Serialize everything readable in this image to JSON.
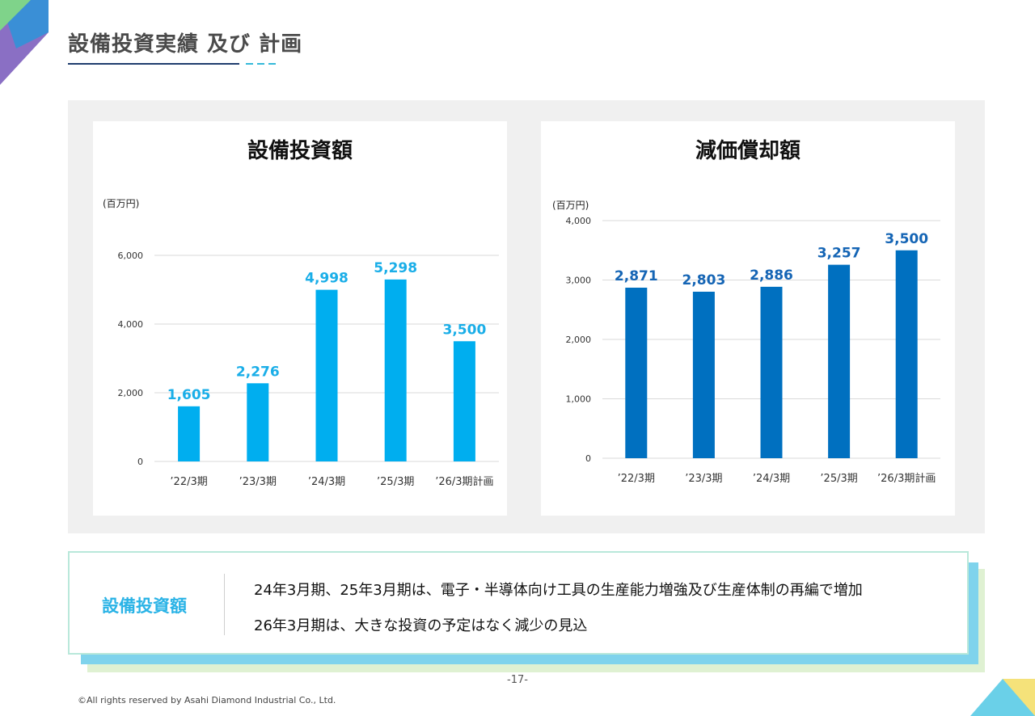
{
  "page": {
    "title": "設備投資実績 及び 計画",
    "page_number": "-17-",
    "copyright": "©All rights reserved by Asahi Diamond Industrial Co., Ltd."
  },
  "note": {
    "label": "設備投資額",
    "lines": [
      "24年3月期、25年3月期は、電子・半導体向け工具の生産能力増強及び生産体制の再編で増加",
      "26年3月期は、大きな投資の予定はなく減少の見込"
    ]
  },
  "chart_data": [
    {
      "type": "bar",
      "title": "設備投資額",
      "unit": "(百万円)",
      "categories": [
        "’22/3期",
        "’23/3期",
        "’24/3期",
        "’25/3期",
        "’26/3期計画"
      ],
      "values": [
        1605,
        2276,
        4998,
        5298,
        3500
      ],
      "value_labels": [
        "1,605",
        "2,276",
        "4,998",
        "5,298",
        "3,500"
      ],
      "ylim": [
        0,
        6000
      ],
      "yticks": [
        0,
        2000,
        4000,
        6000
      ],
      "ytick_labels": [
        "0",
        "2,000",
        "4,000",
        "6,000"
      ],
      "grid": true,
      "color": "#00aeef",
      "label_color": "#1aaee8"
    },
    {
      "type": "bar",
      "title": "減価償却額",
      "unit": "(百万円)",
      "categories": [
        "’22/3期",
        "’23/3期",
        "’24/3期",
        "’25/3期",
        "’26/3期計画"
      ],
      "values": [
        2871,
        2803,
        2886,
        3257,
        3500
      ],
      "value_labels": [
        "2,871",
        "2,803",
        "2,886",
        "3,257",
        "3,500"
      ],
      "ylim": [
        0,
        4000
      ],
      "yticks": [
        0,
        1000,
        2000,
        3000,
        4000
      ],
      "ytick_labels": [
        "0",
        "1,000",
        "2,000",
        "3,000",
        "4,000"
      ],
      "grid": true,
      "color": "#0070c0",
      "label_color": "#1565b5"
    }
  ]
}
